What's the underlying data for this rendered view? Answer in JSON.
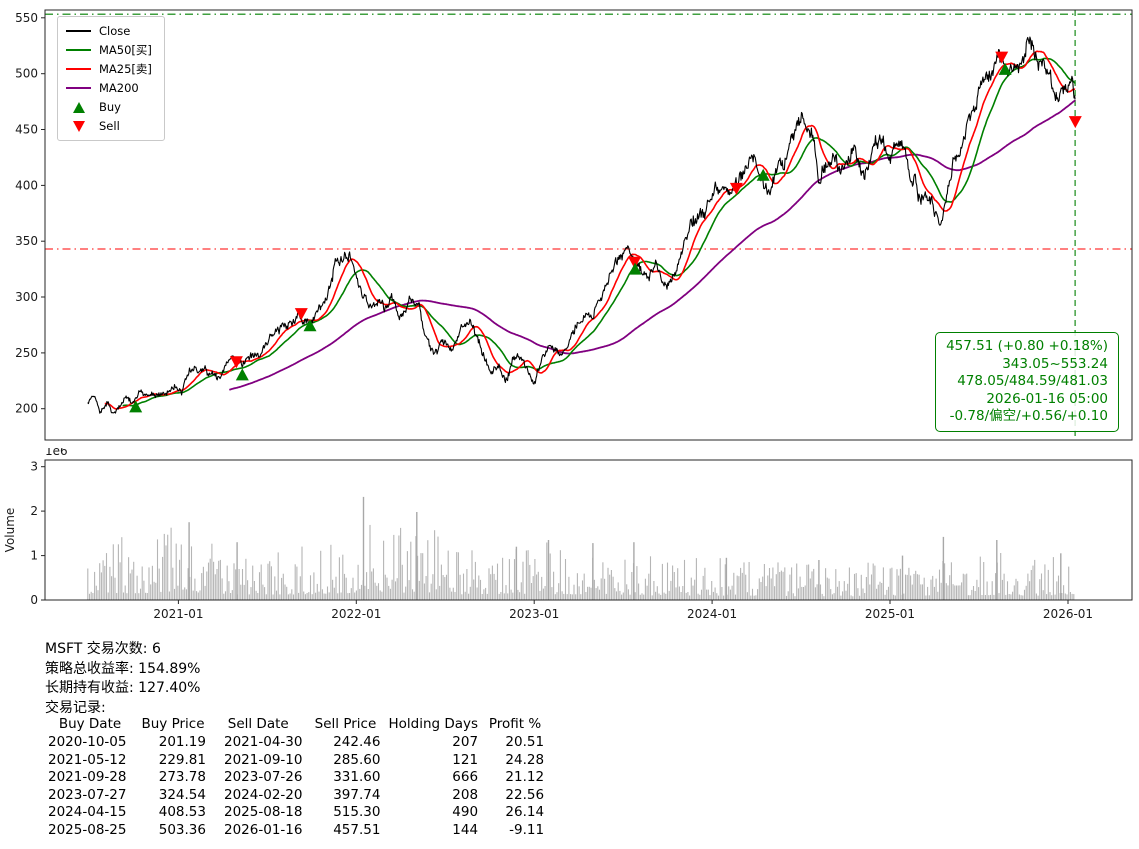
{
  "meta": {
    "symbol": "MSFT"
  },
  "stats": {
    "lines": [
      "MSFT 交易次数: 6",
      "策略总收益率: 154.89%",
      "长期持有收益: 127.40%",
      "交易记录:"
    ]
  },
  "trades": {
    "headers": [
      "Buy Date",
      "Buy Price",
      "Sell Date",
      "Sell Price",
      "Holding Days",
      "Profit %"
    ],
    "rows": [
      [
        "2020-10-05",
        "201.19",
        "2021-04-30",
        "242.46",
        "207",
        "20.51"
      ],
      [
        "2021-05-12",
        "229.81",
        "2021-09-10",
        "285.60",
        "121",
        "24.28"
      ],
      [
        "2021-09-28",
        "273.78",
        "2023-07-26",
        "331.60",
        "666",
        "21.12"
      ],
      [
        "2023-07-27",
        "324.54",
        "2024-02-20",
        "397.74",
        "208",
        "22.56"
      ],
      [
        "2024-04-15",
        "408.53",
        "2025-08-18",
        "515.30",
        "490",
        "26.14"
      ],
      [
        "2025-08-25",
        "503.36",
        "2026-01-16",
        "457.51",
        "144",
        "-9.11"
      ]
    ]
  },
  "chart_data": [
    {
      "type": "line",
      "title": "",
      "xlim": [
        2020.25,
        2026.36
      ],
      "ylim": [
        172,
        557
      ],
      "yticks": [
        200,
        250,
        300,
        350,
        400,
        450,
        500,
        550
      ],
      "xticks": [
        {
          "x": 2021.0,
          "label": "2021-01"
        },
        {
          "x": 2022.0,
          "label": "2022-01"
        },
        {
          "x": 2023.0,
          "label": "2023-01"
        },
        {
          "x": 2024.0,
          "label": "2024-01"
        },
        {
          "x": 2025.0,
          "label": "2025-01"
        },
        {
          "x": 2026.0,
          "label": "2026-01"
        }
      ],
      "legend": [
        {
          "label": "Close",
          "kind": "line",
          "color": "#000000"
        },
        {
          "label": "MA50[买]",
          "kind": "line",
          "color": "#008000"
        },
        {
          "label": "MA25[卖]",
          "kind": "line",
          "color": "#ff0000"
        },
        {
          "label": "MA200",
          "kind": "line",
          "color": "#800080"
        },
        {
          "label": "Buy",
          "kind": "triangle-up",
          "color": "#008000"
        },
        {
          "label": "Sell",
          "kind": "triangle-down",
          "color": "#ff0000"
        }
      ],
      "hlines": [
        {
          "y": 553.24,
          "color": "#008000",
          "dash": "dashdot",
          "name": "range-high-line"
        },
        {
          "y": 343.05,
          "color": "#ff0000",
          "dash": "dashdot",
          "name": "range-low-line"
        }
      ],
      "vlines": [
        {
          "x": 2026.04,
          "color": "#008000",
          "dash": "dashed",
          "name": "current-date-line"
        }
      ],
      "moving_averages": [
        {
          "name": "MA200",
          "window": 200,
          "color": "#800080",
          "width": 1.8
        },
        {
          "name": "MA50[买]",
          "window": 50,
          "color": "#008000",
          "width": 1.6
        },
        {
          "name": "MA25[卖]",
          "window": 25,
          "color": "#ff0000",
          "width": 1.6
        }
      ],
      "buy_color": "#008000",
      "sell_color": "#ff0000",
      "close_series": [
        [
          2020.49,
          204
        ],
        [
          2020.53,
          212
        ],
        [
          2020.56,
          196
        ],
        [
          2020.6,
          210
        ],
        [
          2020.63,
          200
        ],
        [
          2020.67,
          206
        ],
        [
          2020.7,
          211
        ],
        [
          2020.74,
          202
        ],
        [
          2020.78,
          214
        ],
        [
          2020.82,
          211
        ],
        [
          2020.86,
          215
        ],
        [
          2020.9,
          210
        ],
        [
          2020.94,
          218
        ],
        [
          2020.98,
          222
        ],
        [
          2021.02,
          217
        ],
        [
          2021.06,
          233
        ],
        [
          2021.1,
          241
        ],
        [
          2021.14,
          234
        ],
        [
          2021.18,
          228
        ],
        [
          2021.22,
          233
        ],
        [
          2021.26,
          237
        ],
        [
          2021.3,
          247
        ],
        [
          2021.33,
          242
        ],
        [
          2021.37,
          240
        ],
        [
          2021.41,
          246
        ],
        [
          2021.45,
          251
        ],
        [
          2021.49,
          259
        ],
        [
          2021.53,
          266
        ],
        [
          2021.57,
          271
        ],
        [
          2021.61,
          277
        ],
        [
          2021.65,
          284
        ],
        [
          2021.69,
          286
        ],
        [
          2021.72,
          281
        ],
        [
          2021.74,
          274
        ],
        [
          2021.78,
          283
        ],
        [
          2021.82,
          296
        ],
        [
          2021.86,
          309
        ],
        [
          2021.88,
          329
        ],
        [
          2021.9,
          323
        ],
        [
          2021.93,
          330
        ],
        [
          2021.96,
          334
        ],
        [
          2022.0,
          321
        ],
        [
          2022.04,
          303
        ],
        [
          2022.08,
          295
        ],
        [
          2022.12,
          301
        ],
        [
          2022.16,
          290
        ],
        [
          2022.2,
          298
        ],
        [
          2022.24,
          281
        ],
        [
          2022.28,
          291
        ],
        [
          2022.32,
          302
        ],
        [
          2022.36,
          284
        ],
        [
          2022.4,
          259
        ],
        [
          2022.44,
          252
        ],
        [
          2022.48,
          259
        ],
        [
          2022.52,
          253
        ],
        [
          2022.56,
          261
        ],
        [
          2022.6,
          276
        ],
        [
          2022.64,
          285
        ],
        [
          2022.68,
          261
        ],
        [
          2022.72,
          245
        ],
        [
          2022.76,
          236
        ],
        [
          2022.8,
          239
        ],
        [
          2022.84,
          229
        ],
        [
          2022.88,
          243
        ],
        [
          2022.92,
          249
        ],
        [
          2022.96,
          241
        ],
        [
          2023.0,
          224
        ],
        [
          2023.04,
          241
        ],
        [
          2023.08,
          253
        ],
        [
          2023.12,
          256
        ],
        [
          2023.16,
          249
        ],
        [
          2023.2,
          263
        ],
        [
          2023.24,
          276
        ],
        [
          2023.28,
          285
        ],
        [
          2023.32,
          288
        ],
        [
          2023.36,
          292
        ],
        [
          2023.4,
          311
        ],
        [
          2023.44,
          328
        ],
        [
          2023.48,
          336
        ],
        [
          2023.52,
          342
        ],
        [
          2023.56,
          331
        ],
        [
          2023.6,
          322
        ],
        [
          2023.64,
          313
        ],
        [
          2023.68,
          328
        ],
        [
          2023.72,
          316
        ],
        [
          2023.76,
          313
        ],
        [
          2023.8,
          331
        ],
        [
          2023.84,
          347
        ],
        [
          2023.88,
          369
        ],
        [
          2023.92,
          373
        ],
        [
          2023.96,
          371
        ],
        [
          2024.0,
          389
        ],
        [
          2024.04,
          398
        ],
        [
          2024.08,
          405
        ],
        [
          2024.12,
          398
        ],
        [
          2024.16,
          411
        ],
        [
          2024.2,
          416
        ],
        [
          2024.24,
          426
        ],
        [
          2024.28,
          407
        ],
        [
          2024.32,
          396
        ],
        [
          2024.36,
          411
        ],
        [
          2024.4,
          416
        ],
        [
          2024.44,
          431
        ],
        [
          2024.48,
          446
        ],
        [
          2024.52,
          461
        ],
        [
          2024.56,
          441
        ],
        [
          2024.6,
          409
        ],
        [
          2024.64,
          419
        ],
        [
          2024.68,
          429
        ],
        [
          2024.72,
          416
        ],
        [
          2024.76,
          421
        ],
        [
          2024.8,
          433
        ],
        [
          2024.84,
          416
        ],
        [
          2024.88,
          426
        ],
        [
          2024.92,
          441
        ],
        [
          2024.96,
          437
        ],
        [
          2025.0,
          425
        ],
        [
          2025.04,
          443
        ],
        [
          2025.08,
          439
        ],
        [
          2025.12,
          411
        ],
        [
          2025.16,
          393
        ],
        [
          2025.2,
          389
        ],
        [
          2025.24,
          379
        ],
        [
          2025.28,
          363
        ],
        [
          2025.32,
          391
        ],
        [
          2025.36,
          426
        ],
        [
          2025.4,
          439
        ],
        [
          2025.44,
          453
        ],
        [
          2025.48,
          468
        ],
        [
          2025.52,
          499
        ],
        [
          2025.56,
          506
        ],
        [
          2025.6,
          521
        ],
        [
          2025.63,
          515
        ],
        [
          2025.65,
          504
        ],
        [
          2025.68,
          508
        ],
        [
          2025.72,
          513
        ],
        [
          2025.76,
          519
        ],
        [
          2025.8,
          537
        ],
        [
          2025.83,
          524
        ],
        [
          2025.86,
          505
        ],
        [
          2025.9,
          487
        ],
        [
          2025.94,
          474
        ],
        [
          2025.98,
          483
        ],
        [
          2026.01,
          489
        ],
        [
          2026.04,
          477
        ]
      ],
      "annotation": {
        "color": "#008000",
        "lines": [
          "457.51 (+0.80 +0.18%)",
          "343.05~553.24",
          "478.05/484.59/481.03",
          "2026-01-16 05:00",
          "-0.78/偏空/+0.56/+0.10"
        ]
      }
    },
    {
      "type": "bar",
      "ylabel": "Volume",
      "scale_label": "1e6",
      "yticks": [
        0,
        1,
        2,
        3
      ],
      "ylim": [
        0,
        3.15
      ],
      "color": "#b5b5b5",
      "profile": [
        [
          2020.49,
          0.55
        ],
        [
          2020.7,
          0.6
        ],
        [
          2020.9,
          0.62
        ],
        [
          2021.0,
          0.7
        ],
        [
          2021.1,
          0.6
        ],
        [
          2021.3,
          0.5
        ],
        [
          2021.5,
          0.45
        ],
        [
          2021.7,
          0.5
        ],
        [
          2021.9,
          0.55
        ],
        [
          2022.0,
          0.68
        ],
        [
          2022.1,
          0.72
        ],
        [
          2022.3,
          0.65
        ],
        [
          2022.45,
          0.68
        ],
        [
          2022.6,
          0.5
        ],
        [
          2022.8,
          0.55
        ],
        [
          2023.0,
          0.55
        ],
        [
          2023.2,
          0.5
        ],
        [
          2023.4,
          0.48
        ],
        [
          2023.6,
          0.42
        ],
        [
          2023.8,
          0.4
        ],
        [
          2024.0,
          0.4
        ],
        [
          2024.2,
          0.38
        ],
        [
          2024.4,
          0.35
        ],
        [
          2024.6,
          0.33
        ],
        [
          2024.8,
          0.32
        ],
        [
          2025.0,
          0.38
        ],
        [
          2025.2,
          0.4
        ],
        [
          2025.4,
          0.35
        ],
        [
          2025.6,
          0.45
        ],
        [
          2025.8,
          0.38
        ],
        [
          2026.04,
          0.5
        ]
      ],
      "spikes": [
        [
          2021.06,
          1.75
        ],
        [
          2021.33,
          1.3
        ],
        [
          2022.04,
          2.32
        ],
        [
          2022.34,
          1.98
        ],
        [
          2022.9,
          1.2
        ],
        [
          2023.08,
          1.35
        ],
        [
          2023.33,
          1.28
        ],
        [
          2023.56,
          1.3
        ],
        [
          2024.08,
          0.95
        ],
        [
          2024.6,
          0.9
        ],
        [
          2025.07,
          1.0
        ],
        [
          2025.3,
          1.42
        ],
        [
          2025.6,
          1.35
        ],
        [
          2025.96,
          1.05
        ]
      ]
    }
  ]
}
